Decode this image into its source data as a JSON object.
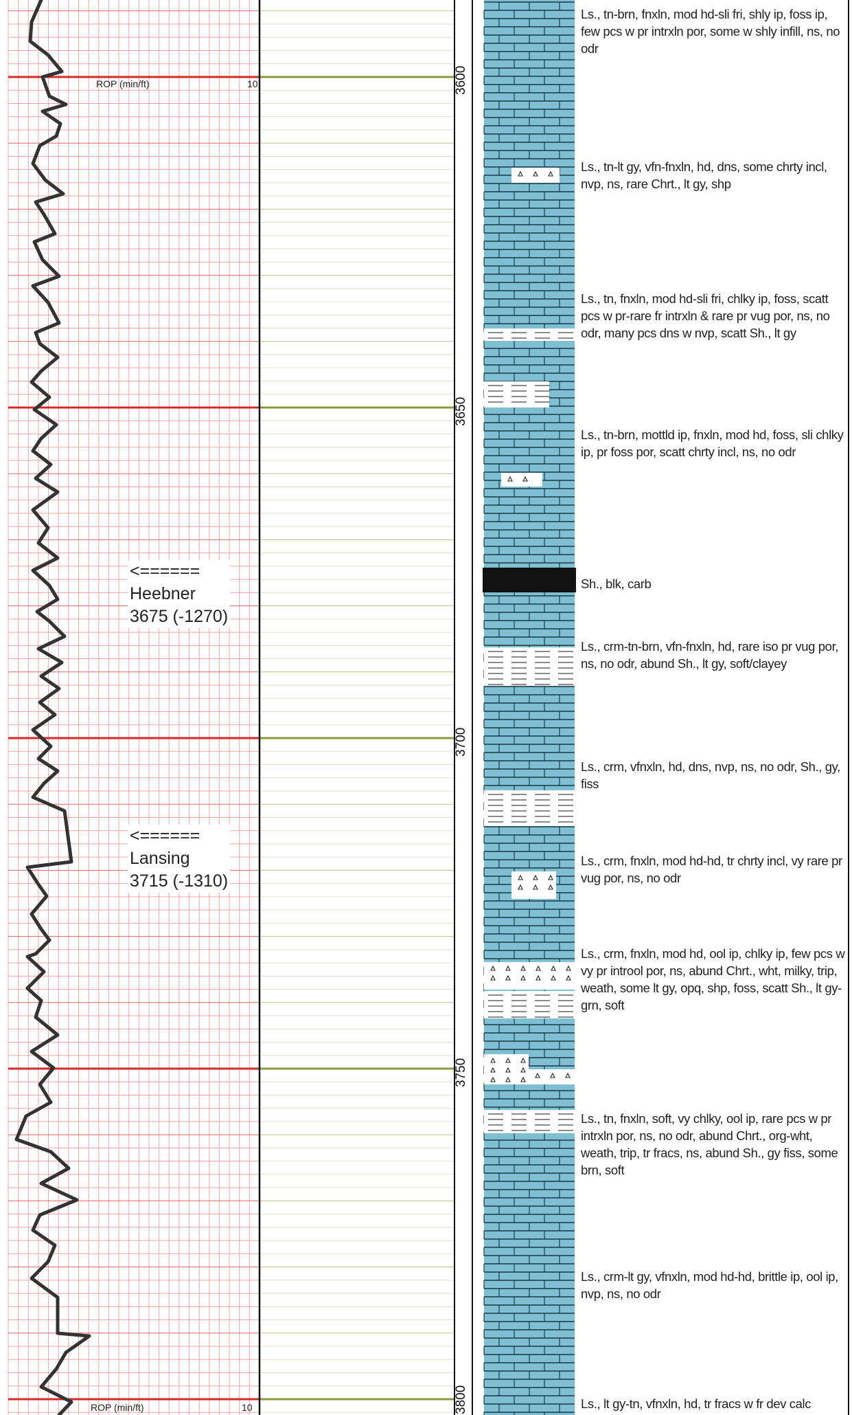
{
  "rop_track": {
    "title": "ROP (min/ft)",
    "scale_max": "10",
    "bottom_title": "ROP (min/ft)",
    "bottom_scale_max": "10"
  },
  "depth_track": {
    "labels": [
      "3600",
      "3650",
      "3700",
      "3750",
      "3800"
    ]
  },
  "formation_tops": [
    {
      "arrow": "<======",
      "name": "Heebner",
      "depth": "3675 (-1270)"
    },
    {
      "arrow": "<======",
      "name": "Lansing",
      "depth": "3715 (-1310)"
    }
  ],
  "lithology_descriptions": [
    "Ls., tn-brn, fnxln, mod hd-sli fri, shly ip, foss ip, few pcs w pr intrxln por, some w shly infill, ns, no odr",
    "Ls., tn-lt gy, vfn-fnxln, hd, dns, some chrty incl, nvp, ns, rare Chrt., lt gy, shp",
    "Ls., tn, fnxln, mod hd-sli fri, chlky ip, foss, scatt pcs w pr-rare fr intrxln & rare pr vug por, ns, no odr, many pcs dns w nvp, scatt Sh., lt gy",
    "Ls., tn-brn, mottld ip, fnxln, mod hd, foss, sli chlky ip, pr foss por, scatt chrty incl, ns, no odr",
    "Sh., blk, carb",
    "Ls., crm-tn-brn, vfn-fnxln, hd, rare iso pr vug por, ns, no odr, abund Sh., lt gy, soft/clayey",
    "Ls., crm, vfnxln, hd, dns, nvp, ns, no odr, Sh., gy, fiss",
    "Ls., crm, fnxln, mod hd-hd, tr chrty incl, vy rare pr vug por, ns, no odr",
    "Ls., crm, fnxln, mod hd, ool ip, chlky ip, few pcs w vy pr introol por, ns, abund Chrt., wht, milky, trip, weath, some lt gy, opq, shp, foss, scatt Sh., lt gy-grn, soft",
    "Ls., tn, fnxln, soft, vy chlky, ool ip, rare pcs w pr intrxln por, ns, no odr, abund Chrt., org-wht, weath, trip, tr fracs, ns, abund Sh., gy fiss, some brn, soft",
    "Ls., crm-lt gy, vfnxln, mod hd-hd, brittle ip, ool ip, nvp, ns, no odr",
    "Ls., lt gy-tn, vfnxln, hd, tr fracs w fr dev calc"
  ],
  "colors": {
    "grid_major": "#d42a2a",
    "grid_minor": "#f2a5a5",
    "gas_track_line": "#8a9a3a",
    "limestone": "#7fbfd4",
    "shale": "#111111",
    "curve": "#333333"
  }
}
